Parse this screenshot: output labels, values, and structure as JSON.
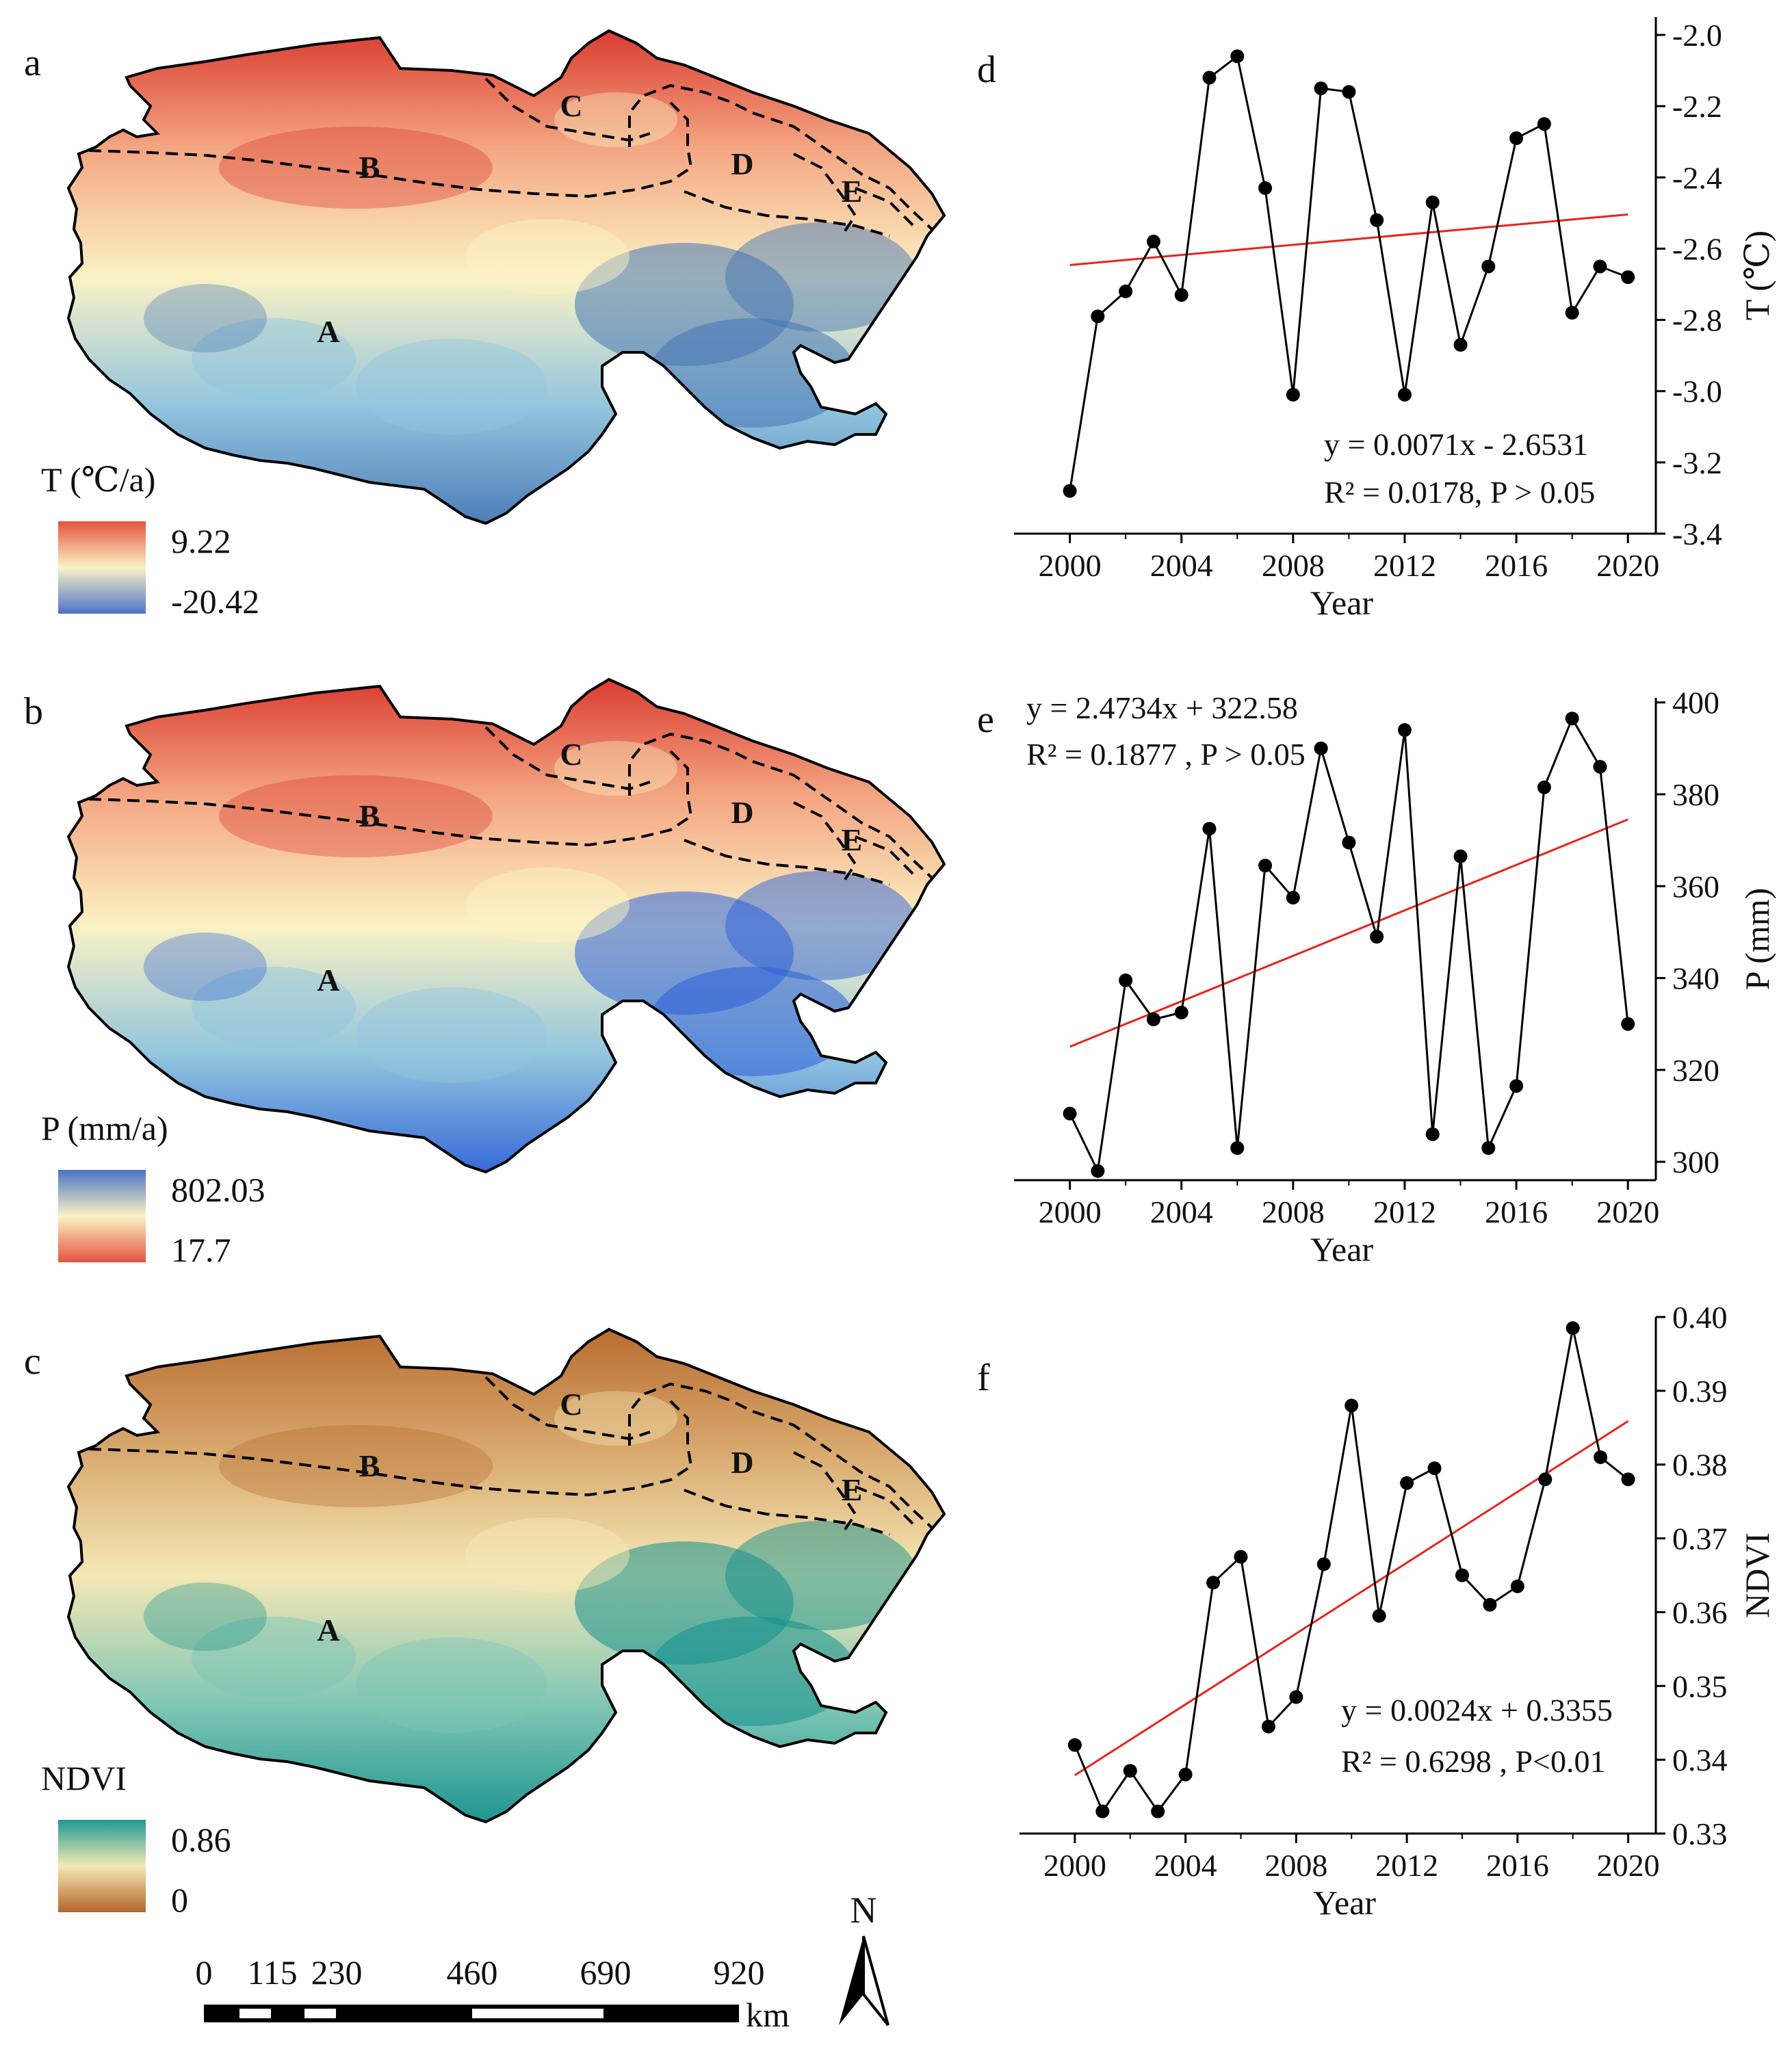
{
  "maps": [
    {
      "panel": "a",
      "legend_title": "T (℃/a)",
      "legend_max": "9.22",
      "legend_min": "-20.42",
      "colors": [
        "#d73027",
        "#f4a582",
        "#fbf2c4",
        "#92c5de",
        "#4575b4"
      ],
      "regions": [
        "A",
        "B",
        "C",
        "D",
        "E"
      ]
    },
    {
      "panel": "b",
      "legend_title": "P  (mm/a)",
      "legend_max": "802.03",
      "legend_min": "17.7",
      "colors": [
        "#d73027",
        "#f4a582",
        "#fbf2c4",
        "#92c5de",
        "#2b5fd8"
      ],
      "regions": [
        "A",
        "B",
        "C",
        "D",
        "E"
      ]
    },
    {
      "panel": "c",
      "legend_title": "NDVI",
      "legend_max": "0.86",
      "legend_min": "0",
      "colors": [
        "#b5662a",
        "#d7a66b",
        "#f5e8b5",
        "#7fc6b5",
        "#13908c"
      ],
      "regions": [
        "A",
        "B",
        "C",
        "D",
        "E"
      ]
    }
  ],
  "scale_bar": {
    "labels": [
      "0",
      "115",
      "230",
      "460",
      "690",
      "920"
    ],
    "unit": "km",
    "north": "N"
  },
  "chart_data": [
    {
      "type": "line",
      "panel": "d",
      "xlabel": "Year",
      "ylabel": "T (℃)",
      "x": [
        2000,
        2001,
        2002,
        2003,
        2004,
        2005,
        2006,
        2007,
        2008,
        2009,
        2010,
        2011,
        2012,
        2013,
        2014,
        2015,
        2016,
        2017,
        2018,
        2019,
        2020
      ],
      "values": [
        -3.28,
        -2.79,
        -2.72,
        -2.58,
        -2.73,
        -2.12,
        -2.06,
        -2.43,
        -3.01,
        -2.15,
        -2.16,
        -2.52,
        -3.01,
        -2.47,
        -2.87,
        -2.65,
        -2.29,
        -2.25,
        -2.78,
        -2.65,
        -2.68
      ],
      "trend": {
        "slope": 0.0071,
        "intercept": -2.6531
      },
      "equation": "y = 0.0071x - 2.6531",
      "r2_text": "R² = 0.0178,  P > 0.05",
      "xlim": [
        1998,
        2021
      ],
      "ylim": [
        -3.4,
        -1.95
      ],
      "xticks": [
        "2000",
        "2004",
        "2008",
        "2012",
        "2016",
        "2020"
      ],
      "yticks": [
        "-2.0",
        "-2.2",
        "-2.4",
        "-2.6",
        "-2.8",
        "-3.0",
        "-3.2",
        "-3.4"
      ],
      "line_color": "#000000",
      "trend_color": "#e8241c"
    },
    {
      "type": "line",
      "panel": "e",
      "xlabel": "Year",
      "ylabel": "P (mm)",
      "x": [
        2000,
        2001,
        2002,
        2003,
        2004,
        2005,
        2006,
        2007,
        2008,
        2009,
        2010,
        2011,
        2012,
        2013,
        2014,
        2015,
        2016,
        2017,
        2018,
        2019,
        2020
      ],
      "values": [
        310.5,
        298,
        339.5,
        331,
        332.5,
        372.5,
        303,
        364.5,
        357.5,
        390,
        369.5,
        349,
        394,
        306,
        366.5,
        303,
        316.5,
        381.5,
        396.5,
        386,
        330
      ],
      "trend": {
        "slope": 2.4734,
        "intercept": 322.58
      },
      "equation": "y = 2.4734x + 322.58",
      "r2_text": "R² = 0.1877 , P > 0.05",
      "xlim": [
        1998,
        2021
      ],
      "ylim": [
        296,
        401
      ],
      "xticks": [
        "2000",
        "2004",
        "2008",
        "2012",
        "2016",
        "2020"
      ],
      "yticks": [
        "300",
        "320",
        "340",
        "360",
        "380",
        "400"
      ],
      "line_color": "#000000",
      "trend_color": "#e8241c"
    },
    {
      "type": "line",
      "panel": "f",
      "xlabel": "Year",
      "ylabel": "NDVI",
      "x": [
        2000,
        2001,
        2002,
        2003,
        2004,
        2005,
        2006,
        2007,
        2008,
        2009,
        2010,
        2011,
        2012,
        2013,
        2014,
        2015,
        2016,
        2017,
        2018,
        2019,
        2020
      ],
      "values": [
        0.342,
        0.333,
        0.3385,
        0.333,
        0.338,
        0.364,
        0.3675,
        0.3445,
        0.3485,
        0.3665,
        0.388,
        0.3595,
        0.3775,
        0.3795,
        0.365,
        0.361,
        0.3635,
        0.378,
        0.3985,
        0.381,
        0.378
      ],
      "trend": {
        "slope": 0.0024,
        "intercept": 0.3355
      },
      "equation": "y = 0.0024x + 0.3355",
      "r2_text": "R² = 0.6298 ,  P<0.01",
      "xlim": [
        1998,
        2021
      ],
      "ylim": [
        0.33,
        0.4
      ],
      "xticks": [
        "2000",
        "2004",
        "2008",
        "2012",
        "2016",
        "2020"
      ],
      "yticks": [
        "0.40",
        "0.39",
        "0.38",
        "0.37",
        "0.36",
        "0.35",
        "0.34",
        "0.33"
      ],
      "line_color": "#000000",
      "trend_color": "#e8241c"
    }
  ]
}
